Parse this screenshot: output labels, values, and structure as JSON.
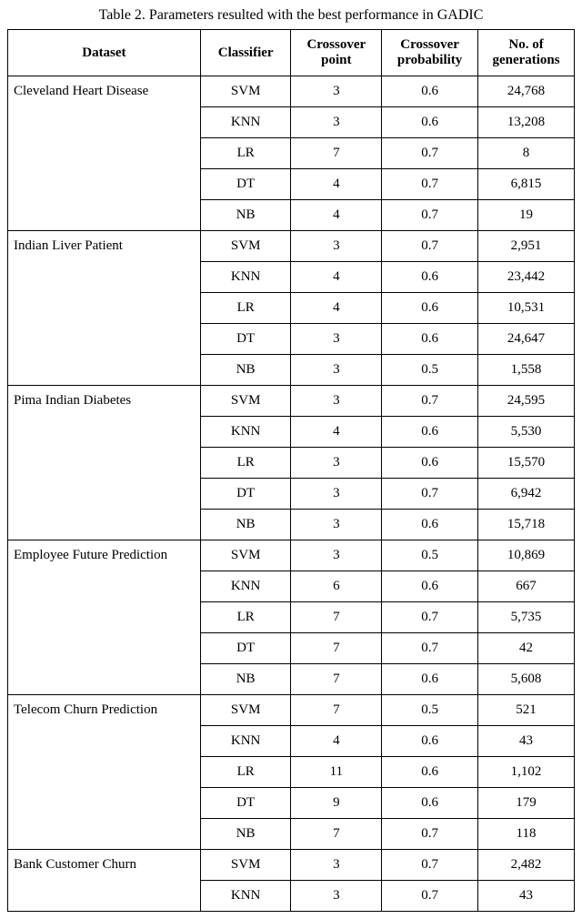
{
  "caption": "Table 2.  Parameters resulted with the best performance in GADIC",
  "headers": {
    "dataset": "Dataset",
    "classifier": "Classifier",
    "xpoint": "Crossover point",
    "xprob": "Crossover probability",
    "gen": "No. of generations"
  },
  "groups": [
    {
      "dataset": "Cleveland Heart Disease",
      "rows": [
        {
          "classifier": "SVM",
          "xpoint": "3",
          "xprob": "0.6",
          "gen": "24,768"
        },
        {
          "classifier": "KNN",
          "xpoint": "3",
          "xprob": "0.6",
          "gen": "13,208"
        },
        {
          "classifier": "LR",
          "xpoint": "7",
          "xprob": "0.7",
          "gen": "8"
        },
        {
          "classifier": "DT",
          "xpoint": "4",
          "xprob": "0.7",
          "gen": "6,815"
        },
        {
          "classifier": "NB",
          "xpoint": "4",
          "xprob": "0.7",
          "gen": "19"
        }
      ]
    },
    {
      "dataset": "Indian Liver Patient",
      "rows": [
        {
          "classifier": "SVM",
          "xpoint": "3",
          "xprob": "0.7",
          "gen": "2,951"
        },
        {
          "classifier": "KNN",
          "xpoint": "4",
          "xprob": "0.6",
          "gen": "23,442"
        },
        {
          "classifier": "LR",
          "xpoint": "4",
          "xprob": "0.6",
          "gen": "10,531"
        },
        {
          "classifier": "DT",
          "xpoint": "3",
          "xprob": "0.6",
          "gen": "24,647"
        },
        {
          "classifier": "NB",
          "xpoint": "3",
          "xprob": "0.5",
          "gen": "1,558"
        }
      ]
    },
    {
      "dataset": "Pima Indian Diabetes",
      "rows": [
        {
          "classifier": "SVM",
          "xpoint": "3",
          "xprob": "0.7",
          "gen": "24,595"
        },
        {
          "classifier": "KNN",
          "xpoint": "4",
          "xprob": "0.6",
          "gen": "5,530"
        },
        {
          "classifier": "LR",
          "xpoint": "3",
          "xprob": "0.6",
          "gen": "15,570"
        },
        {
          "classifier": "DT",
          "xpoint": "3",
          "xprob": "0.7",
          "gen": "6,942"
        },
        {
          "classifier": "NB",
          "xpoint": "3",
          "xprob": "0.6",
          "gen": "15,718"
        }
      ]
    },
    {
      "dataset": "Employee Future Prediction",
      "rows": [
        {
          "classifier": "SVM",
          "xpoint": "3",
          "xprob": "0.5",
          "gen": "10,869"
        },
        {
          "classifier": "KNN",
          "xpoint": "6",
          "xprob": "0.6",
          "gen": "667"
        },
        {
          "classifier": "LR",
          "xpoint": "7",
          "xprob": "0.7",
          "gen": "5,735"
        },
        {
          "classifier": "DT",
          "xpoint": "7",
          "xprob": "0.7",
          "gen": "42"
        },
        {
          "classifier": "NB",
          "xpoint": "7",
          "xprob": "0.6",
          "gen": "5,608"
        }
      ]
    },
    {
      "dataset": "Telecom Churn Prediction",
      "rows": [
        {
          "classifier": "SVM",
          "xpoint": "7",
          "xprob": "0.5",
          "gen": "521"
        },
        {
          "classifier": "KNN",
          "xpoint": "4",
          "xprob": "0.6",
          "gen": "43"
        },
        {
          "classifier": "LR",
          "xpoint": "11",
          "xprob": "0.6",
          "gen": "1,102"
        },
        {
          "classifier": "DT",
          "xpoint": "9",
          "xprob": "0.6",
          "gen": "179"
        },
        {
          "classifier": "NB",
          "xpoint": "7",
          "xprob": "0.7",
          "gen": "118"
        }
      ]
    },
    {
      "dataset": "Bank Customer Churn",
      "rows": [
        {
          "classifier": "SVM",
          "xpoint": "3",
          "xprob": "0.7",
          "gen": "2,482"
        },
        {
          "classifier": "KNN",
          "xpoint": "3",
          "xprob": "0.7",
          "gen": "43"
        }
      ]
    }
  ]
}
